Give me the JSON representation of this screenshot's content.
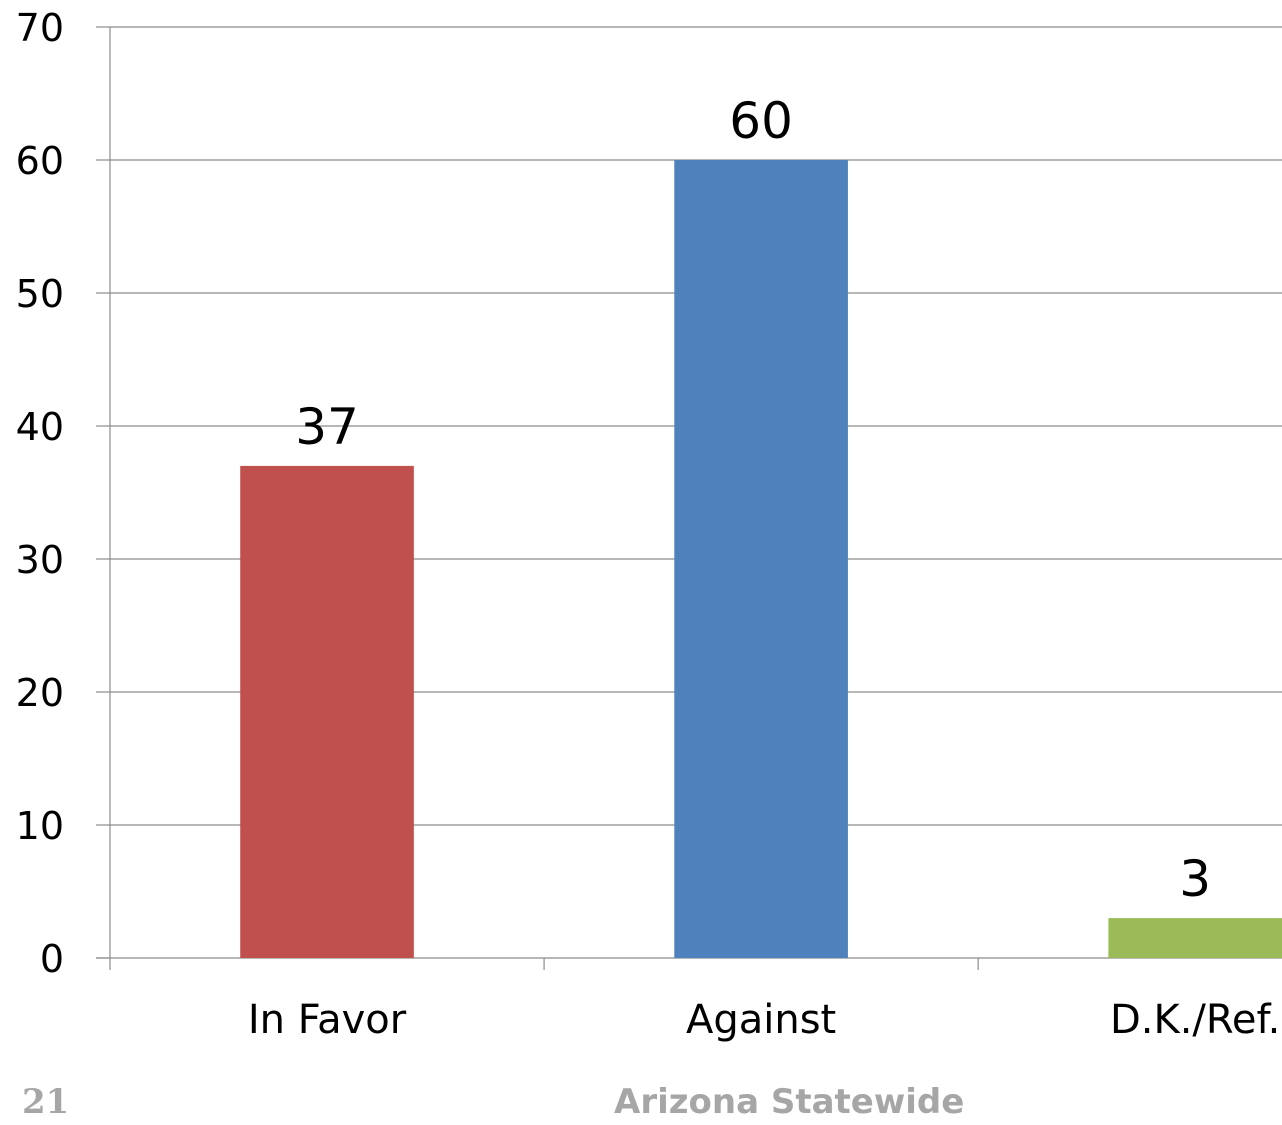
{
  "chart_data": {
    "type": "bar",
    "categories": [
      "In Favor",
      "Against",
      "D.K./Ref."
    ],
    "values": [
      37,
      60,
      3
    ],
    "data_labels": [
      "37",
      "60",
      "3"
    ],
    "colors": [
      "#c0504d",
      "#4f81bd",
      "#9bbb59"
    ],
    "title": "",
    "xlabel": "",
    "ylabel": "",
    "ylim": [
      0,
      70
    ],
    "yticks": [
      "0",
      "10",
      "20",
      "30",
      "40",
      "50",
      "60",
      "70"
    ],
    "grid": true,
    "legend": "none"
  },
  "footer": {
    "page_number": "21",
    "title": "Arizona Statewide"
  }
}
